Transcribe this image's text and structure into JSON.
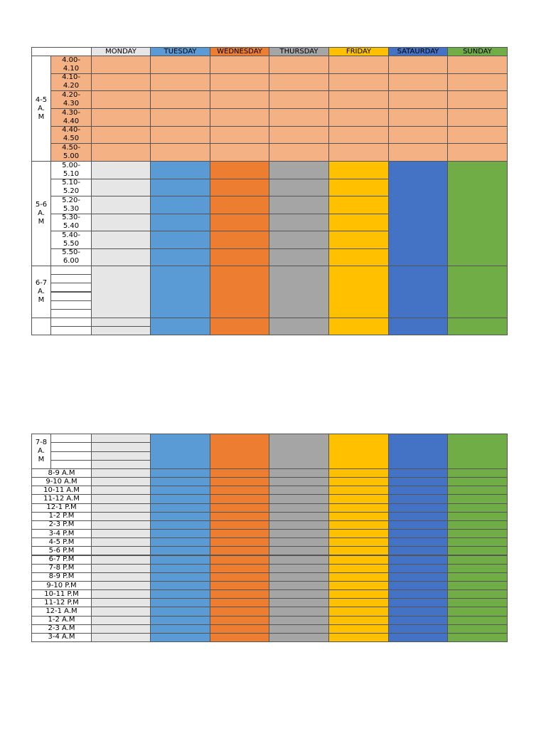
{
  "table1": {
    "days": [
      "MONDAY",
      "TUESDAY",
      "WEDNESDAY",
      "THURSDAY",
      "FRIDAY",
      "SATAURDAY",
      "SUNDAY"
    ],
    "blocks": [
      {
        "label": "4-5 A. M",
        "slots": [
          "4.00- 4.10",
          "4.10- 4.20",
          "4.20- 4.30",
          "4.30- 4.40",
          "4.40- 4.50",
          "4.50- 5.00"
        ]
      },
      {
        "label": "5-6 A. M",
        "slots": [
          "5.00- 5.10",
          "5.10- 5.20",
          "5.20- 5.30",
          "5.30- 5.40",
          "5.40- 5.50",
          "5.50- 6.00"
        ]
      },
      {
        "label": "6-7 A. M"
      }
    ]
  },
  "table2": {
    "block_label": "7-8 A. M",
    "rows": [
      "8-9 A.M",
      "9-10 A.M",
      "10-11 A.M",
      "11-12 A.M",
      "12-1 P.M",
      "1-2 P.M",
      "2-3 P.M",
      "3-4 P.M",
      "4-5 P.M",
      "5-6 P.M",
      "6-7 P.M",
      "7-8 P.M",
      "8-9 P.M",
      "9-10 P.M",
      "10-11 P.M",
      "11-12 P.M",
      "12-1 A.M",
      "1-2 A.M",
      "2-3 A.M",
      "3-4 A.M"
    ]
  }
}
